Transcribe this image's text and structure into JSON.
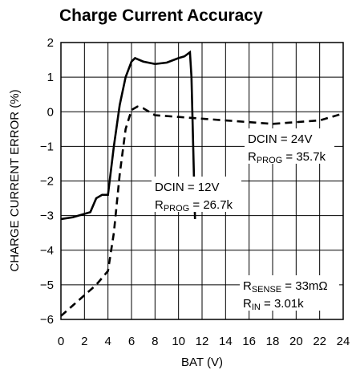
{
  "chart_data": {
    "type": "line",
    "title": "Charge Current Accuracy",
    "x_label": "BAT (V)",
    "y_label": "CHARGE CURRENT ERROR (%)",
    "xlim": [
      0,
      24
    ],
    "xticks": [
      0,
      2,
      4,
      6,
      8,
      10,
      12,
      14,
      16,
      18,
      20,
      22,
      24
    ],
    "ylim": [
      -6,
      2
    ],
    "yticks": [
      2,
      1,
      0,
      {
        "value": -1,
        "label": "−1"
      },
      {
        "value": -2,
        "label": "−2"
      },
      {
        "value": -3,
        "label": "−3"
      },
      {
        "value": -4,
        "label": "−4"
      },
      {
        "value": -5,
        "label": "−5"
      },
      {
        "value": -6,
        "label": "−6"
      }
    ],
    "grid": true,
    "series": [
      {
        "name": "DCIN = 12V",
        "color": "#000000",
        "linestyle": "solid",
        "x": [
          0,
          1,
          2,
          2.5,
          3,
          3.5,
          4,
          4.5,
          5,
          5.5,
          6,
          6.3,
          7,
          8,
          9,
          10,
          10.5,
          10.97,
          11.1,
          11.4
        ],
        "values": [
          -3.1,
          -3.05,
          -2.95,
          -2.9,
          -2.5,
          -2.4,
          -2.4,
          -1.0,
          0.2,
          1.0,
          1.45,
          1.55,
          1.45,
          1.38,
          1.42,
          1.55,
          1.6,
          1.72,
          1.0,
          -3.1
        ]
      },
      {
        "name": "DCIN = 24V",
        "color": "#000000",
        "linestyle": "dashed",
        "x": [
          0,
          1,
          2,
          3,
          4,
          4.5,
          5,
          5.5,
          6,
          6.5,
          7,
          8,
          10,
          12,
          14,
          16,
          18,
          20,
          22,
          24
        ],
        "values": [
          -5.9,
          -5.6,
          -5.3,
          -5.0,
          -4.6,
          -3.5,
          -1.8,
          -0.5,
          0.05,
          0.15,
          0.1,
          -0.1,
          -0.15,
          -0.2,
          -0.25,
          -0.3,
          -0.35,
          -0.3,
          -0.25,
          -0.05
        ]
      }
    ],
    "annotations": [
      {
        "line1": "DCIN = 24V",
        "line2": [
          "R",
          "PROG",
          " = 35.7k"
        ]
      },
      {
        "line1": "DCIN = 12V",
        "line2": [
          "R",
          "PROG",
          " = 26.7k"
        ]
      },
      {
        "line1": [
          "R",
          "SENSE",
          " = 33mΩ"
        ],
        "line2": [
          "R",
          "IN",
          " = 3.01k"
        ]
      }
    ]
  }
}
